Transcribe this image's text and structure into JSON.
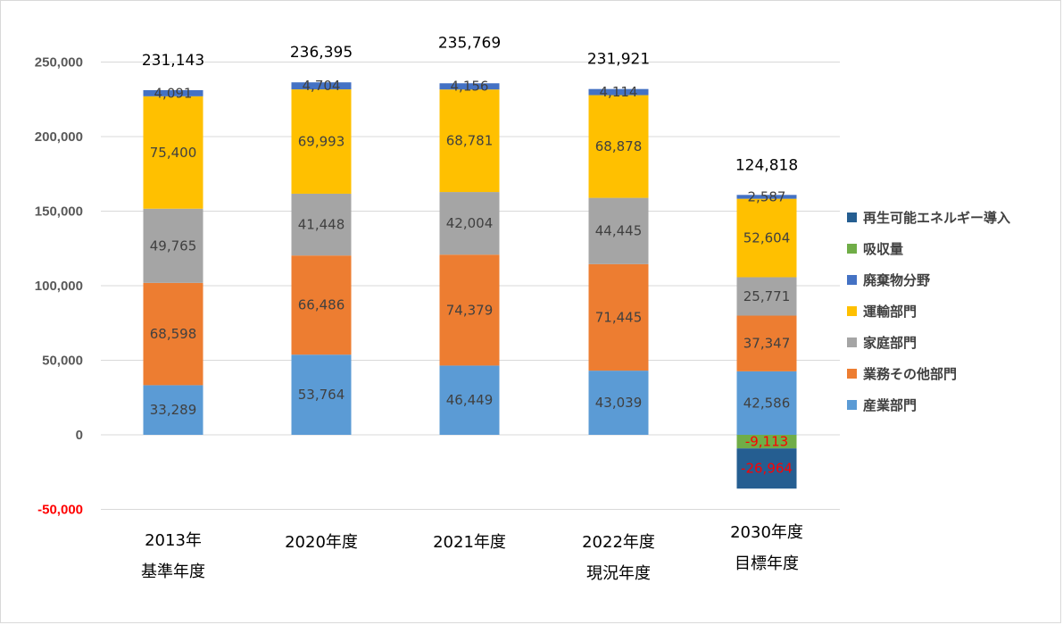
{
  "chart_data": {
    "type": "bar",
    "stacked": true,
    "categories": [
      [
        "2013年",
        "基準年度"
      ],
      [
        "2020年度"
      ],
      [
        "2021年度"
      ],
      [
        "2022年度",
        "現況年度"
      ],
      [
        "2030年度",
        "目標年度"
      ]
    ],
    "category_label_colors": [
      "#7f7f7f",
      "#000000",
      "#000000",
      "#000000",
      "#000000"
    ],
    "series": [
      {
        "name": "産業部門",
        "color": "#5b9bd5",
        "values": [
          33289,
          53764,
          46449,
          43039,
          42586
        ]
      },
      {
        "name": "業務その他部門",
        "color": "#ed7d31",
        "values": [
          68598,
          66486,
          74379,
          71445,
          37347
        ]
      },
      {
        "name": "家庭部門",
        "color": "#a5a5a5",
        "values": [
          49765,
          41448,
          42004,
          44445,
          25771
        ]
      },
      {
        "name": "運輸部門",
        "color": "#ffc000",
        "values": [
          75400,
          69993,
          68781,
          68878,
          52604
        ]
      },
      {
        "name": "廃棄物分野",
        "color": "#4472c4",
        "values": [
          4091,
          4704,
          4156,
          4114,
          2587
        ]
      },
      {
        "name": "吸収量",
        "color": "#70ad47",
        "values": [
          null,
          null,
          null,
          null,
          -9113
        ]
      },
      {
        "name": "再生可能エネルギー導入",
        "color": "#255e91",
        "values": [
          null,
          null,
          null,
          null,
          -26964
        ]
      }
    ],
    "segment_labels": [
      [
        "33,289",
        "53,764",
        "46,449",
        "43,039",
        "42,586"
      ],
      [
        "68,598",
        "66,486",
        "74,379",
        "71,445",
        "37,347"
      ],
      [
        "49,765",
        "41,448",
        "42,004",
        "44,445",
        "25,771"
      ],
      [
        "75,400",
        "69,993",
        "68,781",
        "68,878",
        "52,604"
      ],
      [
        "4,091",
        "4,704",
        "4,156",
        "4,114",
        "2,587"
      ],
      [
        null,
        null,
        null,
        null,
        "-9,113"
      ],
      [
        null,
        null,
        null,
        null,
        "-26,964"
      ]
    ],
    "totals": [
      "231,143",
      "236,395",
      "235,769",
      "231,921",
      "124,818"
    ],
    "y_ticks": [
      "-50,000",
      "0",
      "50,000",
      "100,000",
      "150,000",
      "200,000",
      "250,000"
    ],
    "y_tick_values": [
      -50000,
      0,
      50000,
      100000,
      150000,
      200000,
      250000
    ],
    "ylim": [
      -50000,
      250000
    ],
    "grid": true,
    "legend_position": "right",
    "legend_order": [
      "再生可能エネルギー導入",
      "吸収量",
      "廃棄物分野",
      "運輸部門",
      "家庭部門",
      "業務その他部門",
      "産業部門"
    ],
    "negative_color": "#ff0000"
  }
}
